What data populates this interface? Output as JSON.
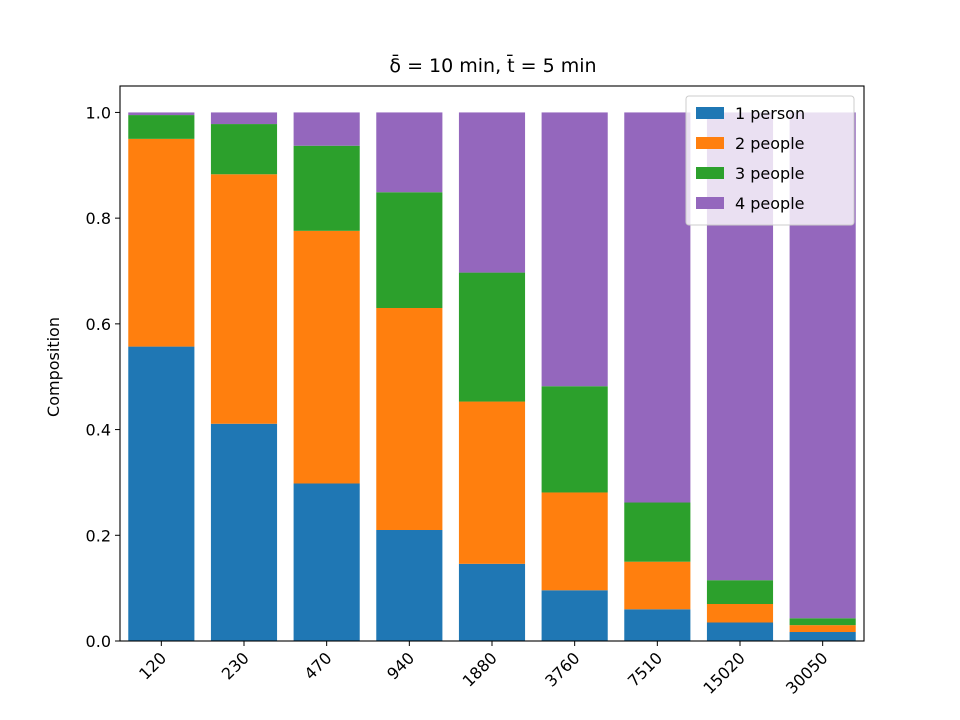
{
  "chart_data": {
    "type": "bar",
    "stacked": true,
    "title": "δ̄ = 10 min, t̄ = 5 min",
    "xlabel": "",
    "ylabel": "Composition",
    "ylim": [
      0,
      1.05
    ],
    "yticks": [
      "0.0",
      "0.2",
      "0.4",
      "0.6",
      "0.8",
      "1.0"
    ],
    "categories": [
      "120",
      "230",
      "470",
      "940",
      "1880",
      "3760",
      "7510",
      "15020",
      "30050"
    ],
    "legend_position": "top-right",
    "grid": false,
    "series": [
      {
        "name": "1 person",
        "color": "#1f77b4",
        "values": [
          0.557,
          0.411,
          0.298,
          0.21,
          0.146,
          0.096,
          0.06,
          0.035,
          0.017
        ]
      },
      {
        "name": "2 people",
        "color": "#ff7f0e",
        "values": [
          0.393,
          0.472,
          0.478,
          0.42,
          0.307,
          0.185,
          0.09,
          0.035,
          0.013
        ]
      },
      {
        "name": "3 people",
        "color": "#2ca02c",
        "values": [
          0.045,
          0.095,
          0.161,
          0.219,
          0.244,
          0.201,
          0.112,
          0.045,
          0.013
        ]
      },
      {
        "name": "4 people",
        "color": "#9467bd",
        "values": [
          0.005,
          0.022,
          0.063,
          0.151,
          0.303,
          0.518,
          0.738,
          0.885,
          0.957
        ]
      }
    ]
  }
}
